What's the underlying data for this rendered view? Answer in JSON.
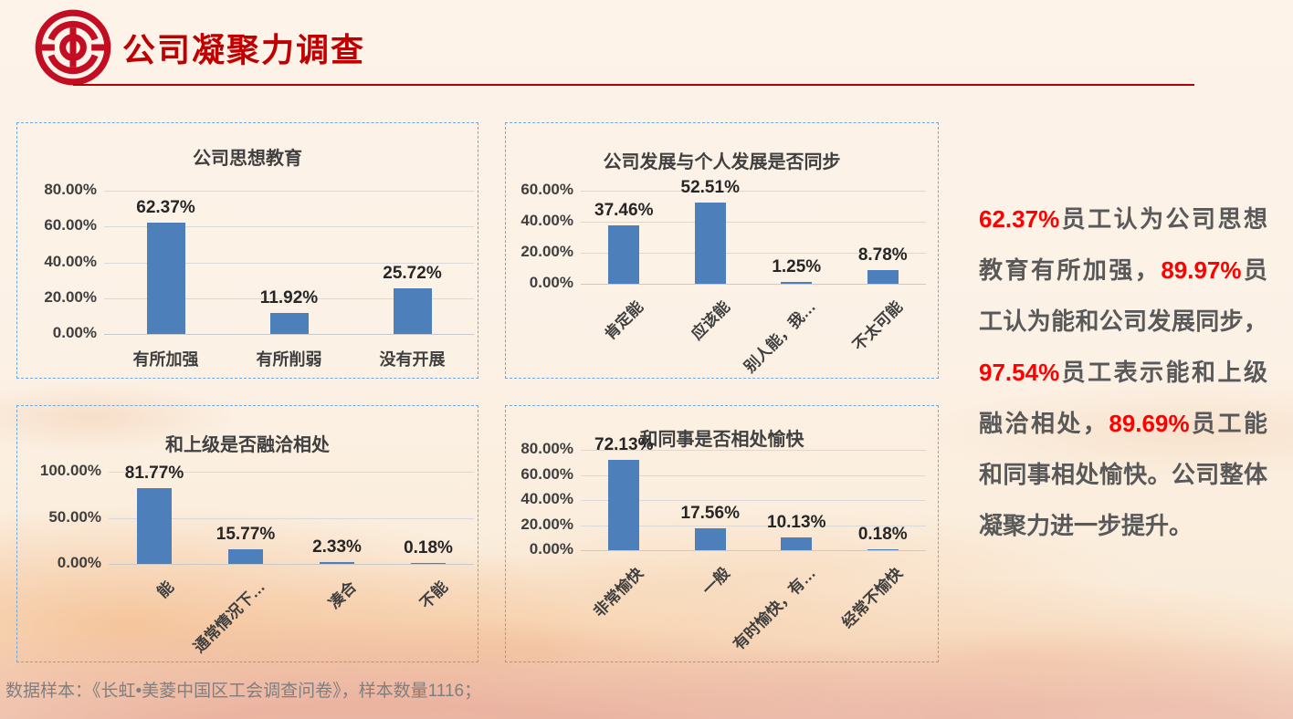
{
  "header": {
    "title": "公司凝聚力调查"
  },
  "logo": {
    "name": "trade-union-emblem",
    "color": "#c30d23"
  },
  "colors": {
    "accent_red": "#c00000",
    "percent_red": "#fe0000",
    "bar_blue": "#4d80bb",
    "grid_gray": "#d9d9d9",
    "panel_border_blue": "#6fa8dc",
    "text_dark": "#3f3f3f",
    "text_gray": "#595959",
    "footer_gray": "#7f7f7f"
  },
  "chart_data": [
    {
      "type": "bar",
      "title": "公司思想教育",
      "categories": [
        "有所加强",
        "有所削弱",
        "没有开展"
      ],
      "values": [
        62.37,
        11.92,
        25.72
      ],
      "value_labels": [
        "62.37%",
        "11.92%",
        "25.72%"
      ],
      "yticks": [
        "80.00%",
        "60.00%",
        "40.00%",
        "20.00%",
        "0.00%"
      ],
      "ymax": 80,
      "ylim": [
        0,
        80
      ],
      "xlabel": "",
      "ylabel": "",
      "grid": "on",
      "legend": "none"
    },
    {
      "type": "bar",
      "title": "公司发展与个人发展是否同步",
      "categories": [
        "肯定能",
        "应该能",
        "别人能，我…",
        "不太可能"
      ],
      "values": [
        37.46,
        52.51,
        1.25,
        8.78
      ],
      "value_labels": [
        "37.46%",
        "52.51%",
        "1.25%",
        "8.78%"
      ],
      "yticks": [
        "60.00%",
        "40.00%",
        "20.00%",
        "0.00%"
      ],
      "ymax": 60,
      "ylim": [
        0,
        60
      ],
      "xlabel": "",
      "ylabel": "",
      "grid": "on",
      "legend": "none"
    },
    {
      "type": "bar",
      "title": "和上级是否融洽相处",
      "categories": [
        "能",
        "通常情况下…",
        "凑合",
        "不能"
      ],
      "values": [
        81.77,
        15.77,
        2.33,
        0.18
      ],
      "value_labels": [
        "81.77%",
        "15.77%",
        "2.33%",
        "0.18%"
      ],
      "yticks": [
        "100.00%",
        "50.00%",
        "0.00%"
      ],
      "ymax": 100,
      "ylim": [
        0,
        100
      ],
      "xlabel": "",
      "ylabel": "",
      "grid": "on",
      "legend": "none"
    },
    {
      "type": "bar",
      "title": "和同事是否相处愉快",
      "categories": [
        "非常愉快",
        "一般",
        "有时愉快，有…",
        "经常不愉快"
      ],
      "values": [
        72.13,
        17.56,
        10.13,
        0.18
      ],
      "value_labels": [
        "72.13%",
        "17.56%",
        "10.13%",
        "0.18%"
      ],
      "yticks": [
        "80.00%",
        "60.00%",
        "40.00%",
        "20.00%",
        "0.00%"
      ],
      "ymax": 80,
      "ylim": [
        0,
        80
      ],
      "xlabel": "",
      "ylabel": "",
      "grid": "on",
      "legend": "none"
    }
  ],
  "summary": {
    "segments": [
      {
        "text": "62.37%",
        "red": true
      },
      {
        "text": "员工认为公司思想教育有所加强，",
        "red": false
      },
      {
        "text": "89.97%",
        "red": true
      },
      {
        "text": "员工认为能和公司发展同步，",
        "red": false
      },
      {
        "text": "97.54%",
        "red": true
      },
      {
        "text": "员工表示能和上级融洽相处，",
        "red": false
      },
      {
        "text": "89.69%",
        "red": true
      },
      {
        "text": "员工能和同事相处愉快。公司整体凝聚力进一步提升。",
        "red": false
      }
    ]
  },
  "footer": {
    "text": "数据样本：《长虹•美菱中国区工会调查问卷》，样本数量1116；"
  }
}
